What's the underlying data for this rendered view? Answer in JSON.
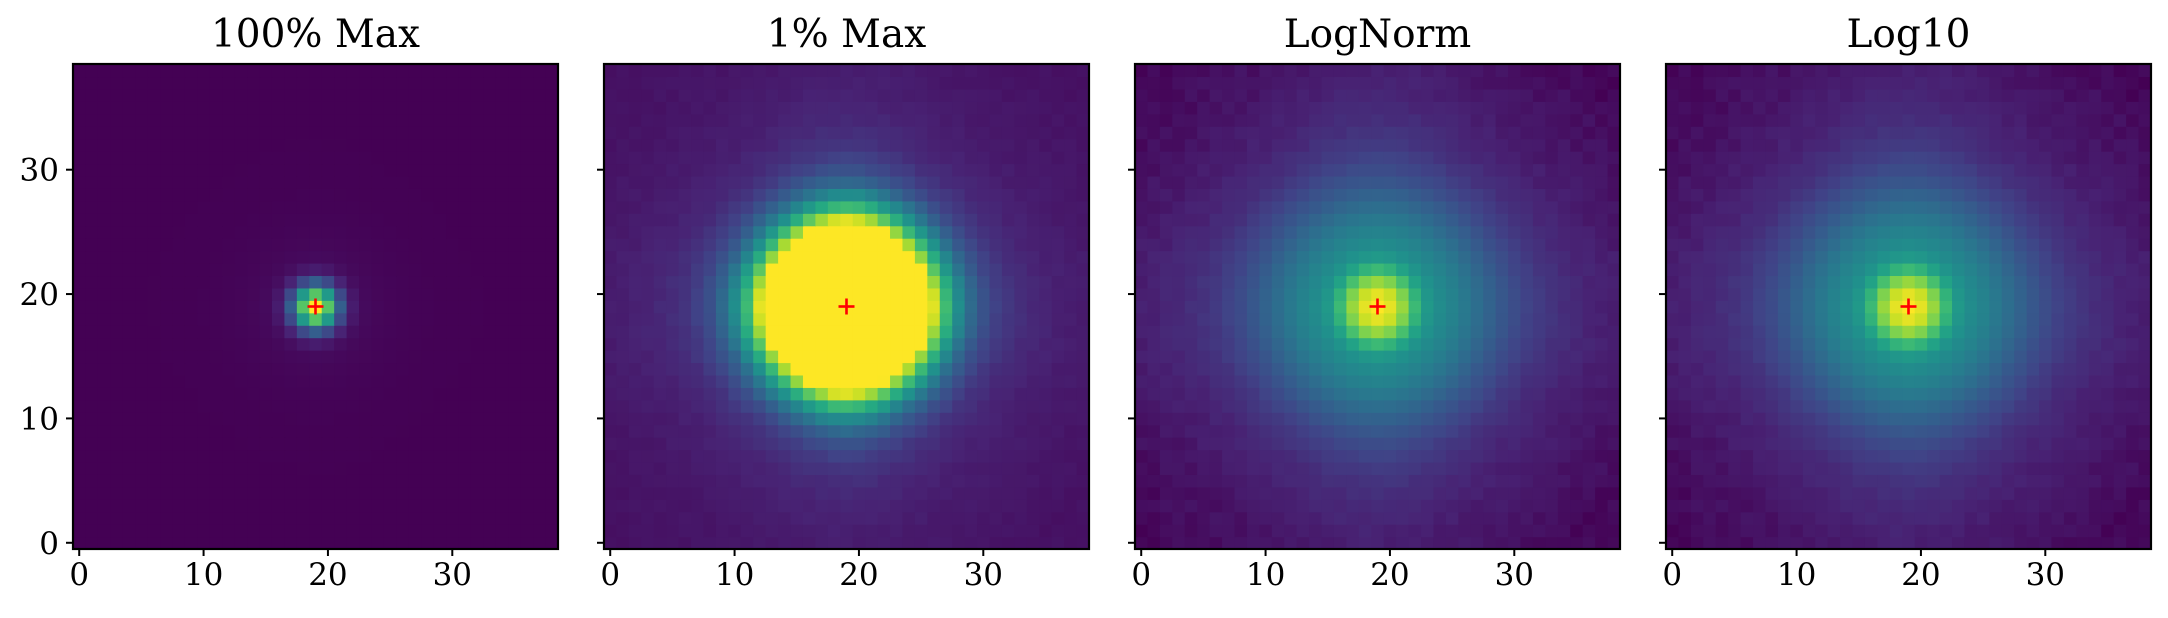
{
  "chart_data": [
    {
      "type": "heatmap",
      "title": "100% Max",
      "norm": "linear",
      "clip_fraction_of_max": 1.0,
      "colormap": "viridis",
      "image_shape": [
        39,
        39
      ],
      "center_marker": {
        "x": 19,
        "y": 19,
        "color": "#ff0000",
        "symbol": "+"
      },
      "xlim": [
        -0.5,
        38.5
      ],
      "ylim": [
        -0.5,
        38.5
      ],
      "xticks": [
        0,
        10,
        20,
        30
      ],
      "yticks": [
        0,
        10,
        20,
        30
      ],
      "xtick_labels": [
        "0",
        "10",
        "20",
        "30"
      ],
      "ytick_labels": [
        "0",
        "10",
        "20",
        "30"
      ],
      "show_yticklabels": true
    },
    {
      "type": "heatmap",
      "title": "1% Max",
      "norm": "linear",
      "clip_fraction_of_max": 0.01,
      "colormap": "viridis",
      "image_shape": [
        39,
        39
      ],
      "center_marker": {
        "x": 19,
        "y": 19,
        "color": "#ff0000",
        "symbol": "+"
      },
      "xlim": [
        -0.5,
        38.5
      ],
      "ylim": [
        -0.5,
        38.5
      ],
      "xticks": [
        0,
        10,
        20,
        30
      ],
      "yticks": [
        0,
        10,
        20,
        30
      ],
      "xtick_labels": [
        "0",
        "10",
        "20",
        "30"
      ],
      "ytick_labels": [
        "0",
        "10",
        "20",
        "30"
      ],
      "show_yticklabels": false
    },
    {
      "type": "heatmap",
      "title": "LogNorm",
      "norm": "log",
      "clip_fraction_of_max": 1.0,
      "colormap": "viridis",
      "image_shape": [
        39,
        39
      ],
      "center_marker": {
        "x": 19,
        "y": 19,
        "color": "#ff0000",
        "symbol": "+"
      },
      "xlim": [
        -0.5,
        38.5
      ],
      "ylim": [
        -0.5,
        38.5
      ],
      "xticks": [
        0,
        10,
        20,
        30
      ],
      "yticks": [
        0,
        10,
        20,
        30
      ],
      "xtick_labels": [
        "0",
        "10",
        "20",
        "30"
      ],
      "ytick_labels": [
        "0",
        "10",
        "20",
        "30"
      ],
      "show_yticklabels": false
    },
    {
      "type": "heatmap",
      "title": "Log10",
      "norm": "log10",
      "clip_fraction_of_max": 1.0,
      "colormap": "viridis",
      "image_shape": [
        39,
        39
      ],
      "center_marker": {
        "x": 19,
        "y": 19,
        "color": "#ff0000",
        "symbol": "+"
      },
      "xlim": [
        -0.5,
        38.5
      ],
      "ylim": [
        -0.5,
        38.5
      ],
      "xticks": [
        0,
        10,
        20,
        30
      ],
      "yticks": [
        0,
        10,
        20,
        30
      ],
      "xtick_labels": [
        "0",
        "10",
        "20",
        "30"
      ],
      "ytick_labels": [
        "0",
        "10",
        "20",
        "30"
      ],
      "show_yticklabels": false
    }
  ]
}
